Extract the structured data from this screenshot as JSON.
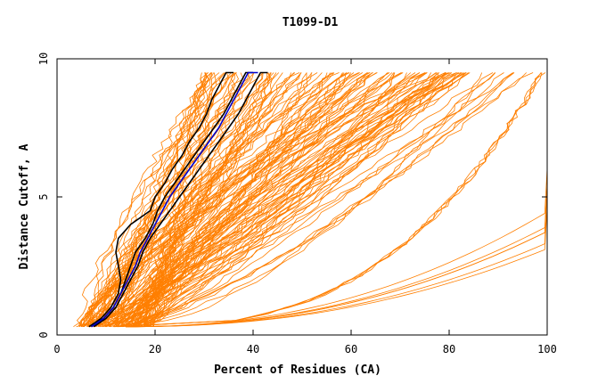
{
  "chart_data": {
    "type": "line",
    "title": "T1099-D1",
    "xlabel": "Percent of Residues (CA)",
    "ylabel": "Distance Cutoff, A",
    "xlim": [
      0,
      100
    ],
    "ylim": [
      0,
      10
    ],
    "x_ticks": [
      "0",
      "20",
      "40",
      "60",
      "80",
      "100"
    ],
    "y_ticks": [
      "0",
      "5",
      "10"
    ],
    "grid": false,
    "legend": "none",
    "colors": {
      "bundle": "#ff7f00",
      "highlight_black": "#000000",
      "highlight_blue": "#0000cc"
    },
    "highlight_series": [
      {
        "color": "#000000",
        "points": [
          [
            6.5,
            0.3
          ],
          [
            9,
            0.6
          ],
          [
            11,
            1.0
          ],
          [
            12.5,
            1.5
          ],
          [
            13,
            2.0
          ],
          [
            12.5,
            2.5
          ],
          [
            12,
            3.0
          ],
          [
            12.5,
            3.5
          ],
          [
            15,
            4.0
          ],
          [
            19,
            4.5
          ],
          [
            20,
            5.0
          ],
          [
            22,
            5.5
          ],
          [
            23.5,
            6.0
          ],
          [
            25.5,
            6.5
          ],
          [
            27,
            7.0
          ],
          [
            29,
            7.5
          ],
          [
            30.5,
            8.0
          ],
          [
            31.5,
            8.5
          ],
          [
            33,
            9.0
          ],
          [
            34.5,
            9.5
          ],
          [
            36,
            10.0
          ]
        ]
      },
      {
        "color": "#000000",
        "points": [
          [
            7,
            0.3
          ],
          [
            9.5,
            0.6
          ],
          [
            11.5,
            1.0
          ],
          [
            13,
            1.5
          ],
          [
            14,
            2.0
          ],
          [
            15,
            2.5
          ],
          [
            16,
            3.0
          ],
          [
            18,
            3.5
          ],
          [
            19.5,
            4.0
          ],
          [
            20.5,
            4.5
          ],
          [
            22,
            5.0
          ],
          [
            24,
            5.5
          ],
          [
            26,
            6.0
          ],
          [
            28,
            6.5
          ],
          [
            30,
            7.0
          ],
          [
            32,
            7.5
          ],
          [
            34,
            8.0
          ],
          [
            35.5,
            8.5
          ],
          [
            37,
            9.0
          ],
          [
            38.5,
            9.5
          ],
          [
            40,
            10.0
          ]
        ]
      },
      {
        "color": "#000000",
        "points": [
          [
            7.5,
            0.3
          ],
          [
            10,
            0.6
          ],
          [
            12,
            1.0
          ],
          [
            13.5,
            1.5
          ],
          [
            15,
            2.0
          ],
          [
            16.5,
            2.5
          ],
          [
            17.5,
            3.0
          ],
          [
            19,
            3.5
          ],
          [
            21,
            4.0
          ],
          [
            23,
            4.5
          ],
          [
            25,
            5.0
          ],
          [
            27,
            5.5
          ],
          [
            29,
            6.0
          ],
          [
            31,
            6.5
          ],
          [
            33,
            7.0
          ],
          [
            35,
            7.5
          ],
          [
            37,
            8.0
          ],
          [
            38.5,
            8.5
          ],
          [
            40,
            9.0
          ],
          [
            41.5,
            9.5
          ],
          [
            43,
            10.0
          ]
        ]
      },
      {
        "color": "#0000cc",
        "points": [
          [
            7,
            0.3
          ],
          [
            9.5,
            0.6
          ],
          [
            11.5,
            1.0
          ],
          [
            13,
            1.5
          ],
          [
            14.5,
            2.0
          ],
          [
            16,
            2.5
          ],
          [
            17,
            3.0
          ],
          [
            18.5,
            3.5
          ],
          [
            20,
            4.0
          ],
          [
            21.5,
            4.5
          ],
          [
            23,
            5.0
          ],
          [
            25,
            5.5
          ],
          [
            27,
            6.0
          ],
          [
            29,
            6.5
          ],
          [
            31,
            7.0
          ],
          [
            33,
            7.5
          ],
          [
            34.5,
            8.0
          ],
          [
            36,
            8.5
          ],
          [
            37.5,
            9.0
          ],
          [
            39,
            9.5
          ],
          [
            41,
            10.0
          ]
        ]
      }
    ]
  }
}
